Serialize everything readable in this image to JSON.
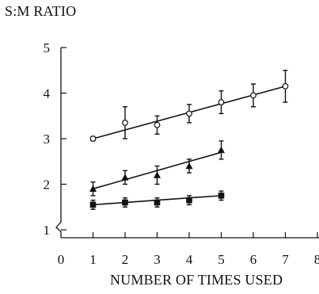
{
  "chart_data": {
    "type": "line",
    "xlabel": "NUMBER OF TIMES USED",
    "ylabel": "S:M RATIO",
    "xlim": [
      0,
      8
    ],
    "ylim": [
      1,
      5
    ],
    "xticks": [
      0,
      1,
      2,
      3,
      4,
      5,
      6,
      7,
      8
    ],
    "yticks": [
      1,
      2,
      3,
      4,
      5
    ],
    "axis_break": true,
    "grid": false,
    "series": [
      {
        "marker": "open-circle",
        "x": [
          1,
          2,
          3,
          4,
          5,
          6,
          7
        ],
        "y": [
          3.0,
          3.35,
          3.3,
          3.55,
          3.8,
          3.95,
          4.15
        ],
        "error": [
          0.05,
          0.35,
          0.2,
          0.2,
          0.25,
          0.25,
          0.35
        ],
        "fit": [
          [
            1,
            3.0
          ],
          [
            7,
            4.15
          ]
        ]
      },
      {
        "marker": "filled-triangle",
        "x": [
          1,
          2,
          3,
          4,
          5
        ],
        "y": [
          1.9,
          2.15,
          2.2,
          2.4,
          2.75
        ],
        "error": [
          0.15,
          0.15,
          0.2,
          0.15,
          0.2
        ],
        "fit": [
          [
            1,
            1.9
          ],
          [
            5,
            2.7
          ]
        ]
      },
      {
        "marker": "filled-square",
        "x": [
          1,
          2,
          3,
          4,
          5
        ],
        "y": [
          1.55,
          1.6,
          1.6,
          1.65,
          1.75
        ],
        "error": [
          0.1,
          0.1,
          0.1,
          0.1,
          0.1
        ],
        "fit": [
          [
            1,
            1.55
          ],
          [
            5,
            1.75
          ]
        ]
      }
    ]
  }
}
